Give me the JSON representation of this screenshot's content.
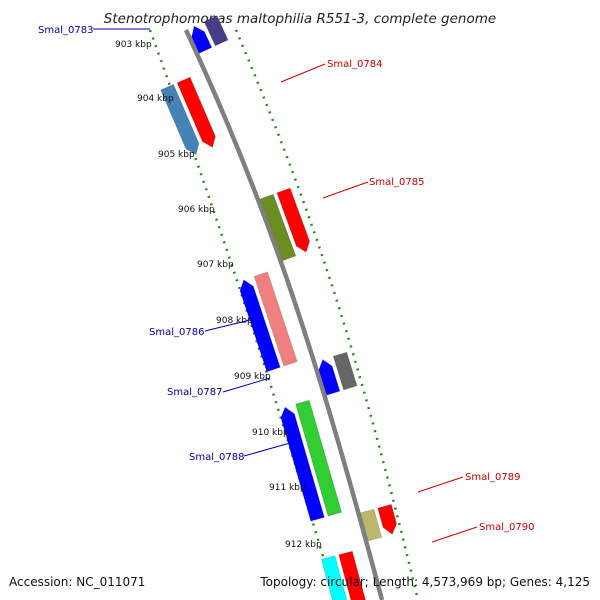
{
  "title": "Stenotrophomonas maltophilia R551-3, complete genome",
  "footer": {
    "accession": "Accession: NC_011071",
    "topology": "Topology: circular; Length: 4,573,969 bp; Genes: 4,125"
  },
  "colors": {
    "backbone": "#7f7f7f",
    "tick": "#228b22",
    "label_forward": "#cc0000",
    "label_reverse": "#0000aa"
  },
  "kbp_ticks": [
    "903 kbp",
    "904 kbp",
    "905 kbp",
    "906 kbp",
    "907 kbp",
    "908 kbp",
    "909 kbp",
    "910 kbp",
    "911 kbp",
    "912 kbp"
  ],
  "gene_labels": [
    {
      "text": "Smal_0783",
      "strand": "reverse"
    },
    {
      "text": "Smal_0784",
      "strand": "forward"
    },
    {
      "text": "Smal_0785",
      "strand": "forward"
    },
    {
      "text": "Smal_0786",
      "strand": "reverse"
    },
    {
      "text": "Smal_0787",
      "strand": "reverse"
    },
    {
      "text": "Smal_0788",
      "strand": "reverse"
    },
    {
      "text": "Smal_0789",
      "strand": "forward"
    },
    {
      "text": "Smal_0790",
      "strand": "forward"
    }
  ],
  "genes": [
    {
      "color": "#483d8b",
      "start_kbp": 902.6,
      "end_kbp": 903.2,
      "direction": "none"
    },
    {
      "color": "#0000ff",
      "start_kbp": 902.6,
      "end_kbp": 903.2,
      "direction": "up"
    },
    {
      "color": "#ff0000",
      "start_kbp": 903.5,
      "end_kbp": 904.7,
      "direction": "down"
    },
    {
      "color": "#4682b4",
      "start_kbp": 903.5,
      "end_kbp": 904.7,
      "direction": "down"
    },
    {
      "color": "#ff0000",
      "start_kbp": 905.8,
      "end_kbp": 906.9,
      "direction": "down"
    },
    {
      "color": "#6b8e23",
      "start_kbp": 905.8,
      "end_kbp": 906.9,
      "direction": "none"
    },
    {
      "color": "#f08080",
      "start_kbp": 907.0,
      "end_kbp": 908.6,
      "direction": "none"
    },
    {
      "color": "#0000ff",
      "start_kbp": 907.0,
      "end_kbp": 908.6,
      "direction": "up"
    },
    {
      "color": "#666666",
      "start_kbp": 908.7,
      "end_kbp": 909.3,
      "direction": "none"
    },
    {
      "color": "#0000ff",
      "start_kbp": 908.7,
      "end_kbp": 909.3,
      "direction": "up"
    },
    {
      "color": "#32cd32",
      "start_kbp": 909.3,
      "end_kbp": 911.3,
      "direction": "none"
    },
    {
      "color": "#0000ff",
      "start_kbp": 909.3,
      "end_kbp": 911.3,
      "direction": "up"
    },
    {
      "color": "#ff0000",
      "start_kbp": 911.4,
      "end_kbp": 911.9,
      "direction": "down"
    },
    {
      "color": "#bdb76b",
      "start_kbp": 911.4,
      "end_kbp": 911.9,
      "direction": "none"
    },
    {
      "color": "#ff0000",
      "start_kbp": 912.0,
      "end_kbp": 913.4,
      "direction": "none"
    },
    {
      "color": "#00ffff",
      "start_kbp": 912.0,
      "end_kbp": 913.4,
      "direction": "none"
    }
  ]
}
